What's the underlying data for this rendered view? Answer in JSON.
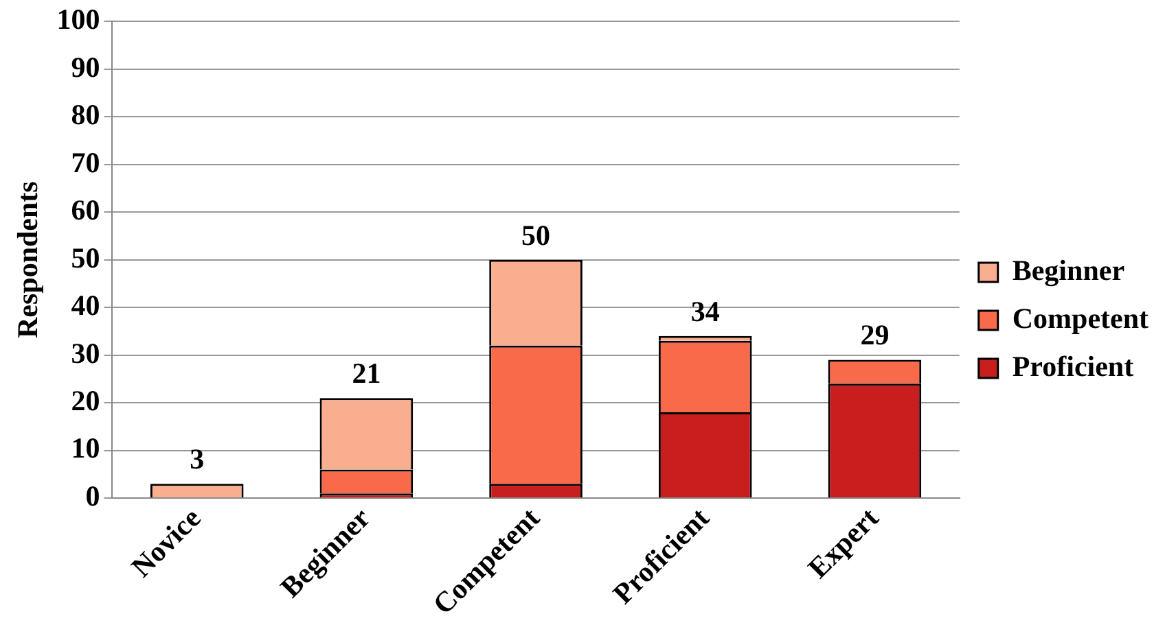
{
  "chart_data": {
    "type": "bar",
    "stacked": true,
    "ylabel": "Respondents",
    "categories": [
      "Novice",
      "Beginner",
      "Competent",
      "Proficient",
      "Expert"
    ],
    "series": [
      {
        "name": "Proficient",
        "color": "#c81e1e",
        "values": [
          0,
          1,
          3,
          18,
          24
        ]
      },
      {
        "name": "Competent",
        "color": "#f96a4a",
        "values": [
          0,
          5,
          29,
          15,
          5
        ]
      },
      {
        "name": "Beginner",
        "color": "#f9ae8f",
        "values": [
          3,
          15,
          18,
          1,
          0
        ]
      }
    ],
    "totals": [
      "3",
      "21",
      "50",
      "34",
      "29"
    ],
    "ylim": [
      0,
      100
    ],
    "yticks": [
      0,
      10,
      20,
      30,
      40,
      50,
      60,
      70,
      80,
      90,
      100
    ],
    "grid": "y",
    "legend": "right"
  }
}
